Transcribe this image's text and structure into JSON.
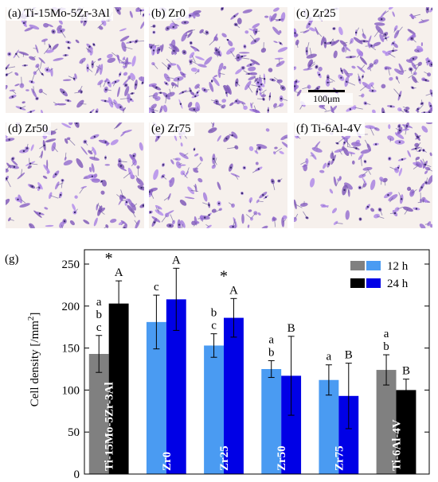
{
  "panels": [
    {
      "key": "a",
      "letter": "(a)",
      "name": "Ti-15Mo-5Zr-3Al",
      "density": 143
    },
    {
      "key": "b",
      "letter": "(b)",
      "name": "Zr0",
      "density": 181
    },
    {
      "key": "c",
      "letter": "(c)",
      "name": "Zr25",
      "density": 153
    },
    {
      "key": "d",
      "letter": "(d)",
      "name": "Zr50",
      "density": 125
    },
    {
      "key": "e",
      "letter": "(e)",
      "name": "Zr75",
      "density": 112
    },
    {
      "key": "f",
      "letter": "(f)",
      "name": "Ti-6Al-4V",
      "density": 124
    }
  ],
  "scale_bar": "100μm",
  "chart_label": "(g)",
  "chart_data": {
    "type": "bar",
    "ylabel_main": "Cell density [/mm",
    "ylabel_sup": "2",
    "ylabel_end": "]",
    "ylim": [
      0,
      250
    ],
    "yticks": [
      0,
      50,
      100,
      150,
      200,
      250
    ],
    "categories": [
      "Ti-15Mo-5Zr-3Al",
      "Zr0",
      "Zr25",
      "Zr50",
      "Zr75",
      "Ti-6Al-4V"
    ],
    "series": [
      {
        "name": "12 h",
        "values": [
          143,
          181,
          153,
          125,
          112,
          124
        ],
        "errors": [
          22,
          32,
          14,
          10,
          18,
          18
        ]
      },
      {
        "name": "24 h",
        "values": [
          203,
          208,
          186,
          117,
          93,
          100
        ],
        "errors": [
          27,
          37,
          23,
          47,
          39,
          13
        ]
      }
    ],
    "colors": {
      "bar12_ref": "#808080",
      "bar24_ref": "#000000",
      "bar12_exp": "#4a9bf2",
      "bar24_exp": "#0000e6",
      "legend_12_a": "#808080",
      "legend_12_b": "#4a9bf2",
      "legend_24_a": "#000000",
      "legend_24_b": "#0000e6"
    },
    "letters_12h": [
      "a\nb\nc",
      "c",
      "b\nc",
      "a\nb",
      "a",
      "a\nb"
    ],
    "letters_24h": [
      "A",
      "A",
      "A",
      "B",
      "B",
      "B"
    ],
    "stars": [
      "*",
      "",
      "*",
      "",
      "",
      ""
    ]
  }
}
